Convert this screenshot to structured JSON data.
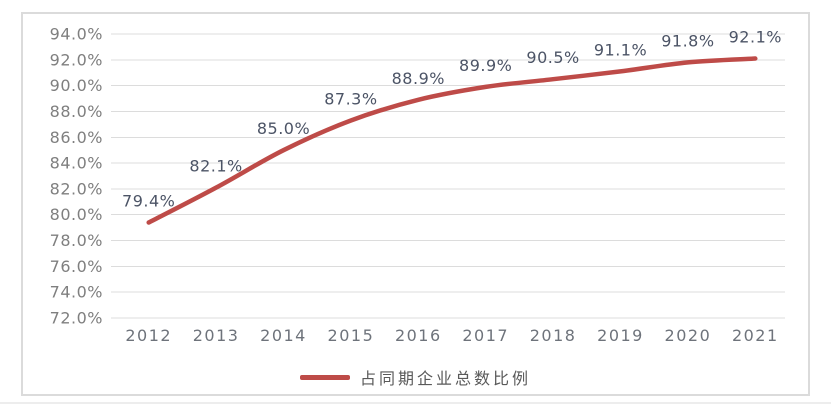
{
  "chart_data": {
    "type": "line",
    "title": "",
    "xlabel": "",
    "ylabel": "",
    "categories": [
      "2012",
      "2013",
      "2014",
      "2015",
      "2016",
      "2017",
      "2018",
      "2019",
      "2020",
      "2021"
    ],
    "series": [
      {
        "name": "占同期企业总数比例",
        "values": [
          79.4,
          82.1,
          85.0,
          87.3,
          88.9,
          89.9,
          90.5,
          91.1,
          91.8,
          92.1
        ],
        "color": "#BE4B48"
      }
    ],
    "ylim": [
      72.0,
      94.0
    ],
    "ytick_step": 2.0,
    "ytick_decimals": 1,
    "ytick_suffix": "%",
    "data_labels_visible": true,
    "data_label_decimals": 1,
    "data_label_suffix": "%",
    "grid": "horizontal",
    "legend_position": "bottom",
    "line_smoothing": true,
    "colors": {
      "line": "#BE4B48",
      "gridline": "#DCDCDC",
      "frame_border": "#DBDBDB",
      "y_tick_label": "#7F7F7F",
      "x_tick_label": "#6E737B",
      "data_label": "#4C5466",
      "legend_label": "#595959",
      "background": "#FFFFFF"
    }
  }
}
